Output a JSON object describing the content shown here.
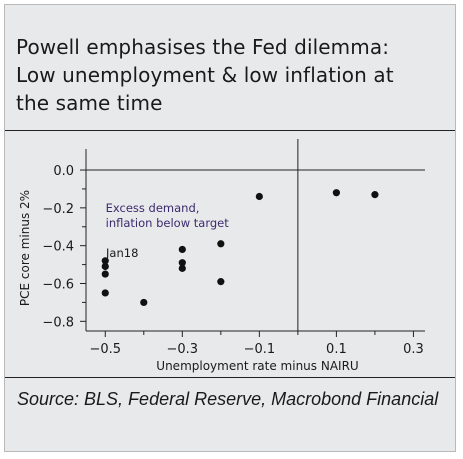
{
  "title_lines": [
    "Powell emphasises the Fed dilemma:",
    "Low unemployment & low inflation at",
    "the same time"
  ],
  "source": "Source: BLS, Federal Reserve, Macrobond Financial",
  "chart_data": {
    "type": "scatter",
    "title": "Powell emphasises the Fed dilemma: Low unemployment & low inflation at the same time",
    "xlabel": "Unemployment rate minus NAIRU",
    "ylabel": "PCE core minus 2%",
    "xlim": [
      -0.55,
      0.33
    ],
    "ylim": [
      -0.83,
      0.09
    ],
    "x_ticks": [
      -0.5,
      -0.3,
      -0.1,
      0.1,
      0.3
    ],
    "x_tick_labels": [
      "−0.5",
      "−0.3",
      "−0.1",
      "0.1",
      "0.3"
    ],
    "y_ticks": [
      0.0,
      -0.2,
      -0.4,
      -0.6,
      -0.8
    ],
    "y_tick_labels": [
      "0.0",
      "−0.2",
      "−0.4",
      "−0.6",
      "−0.8"
    ],
    "reference_lines": {
      "x": 0,
      "y": 0
    },
    "grid": false,
    "points": [
      {
        "x": -0.5,
        "y": -0.48
      },
      {
        "x": -0.5,
        "y": -0.51
      },
      {
        "x": -0.5,
        "y": -0.55
      },
      {
        "x": -0.5,
        "y": -0.65
      },
      {
        "x": -0.4,
        "y": -0.7
      },
      {
        "x": -0.3,
        "y": -0.42
      },
      {
        "x": -0.3,
        "y": -0.49
      },
      {
        "x": -0.3,
        "y": -0.52
      },
      {
        "x": -0.2,
        "y": -0.39
      },
      {
        "x": -0.2,
        "y": -0.59
      },
      {
        "x": -0.1,
        "y": -0.14
      },
      {
        "x": 0.1,
        "y": -0.12
      },
      {
        "x": 0.2,
        "y": -0.13
      }
    ],
    "annotations": [
      {
        "text_lines": [
          "Excess demand,",
          "inflation below target"
        ],
        "color": "#3d2a6e"
      },
      {
        "text_lines": [
          "Jan18"
        ],
        "color": "#1a1a1a"
      }
    ]
  },
  "colors": {
    "background": "#e8e9ea",
    "point": "#111111",
    "annotation_purple": "#3d2a6e",
    "axis": "#222222"
  }
}
